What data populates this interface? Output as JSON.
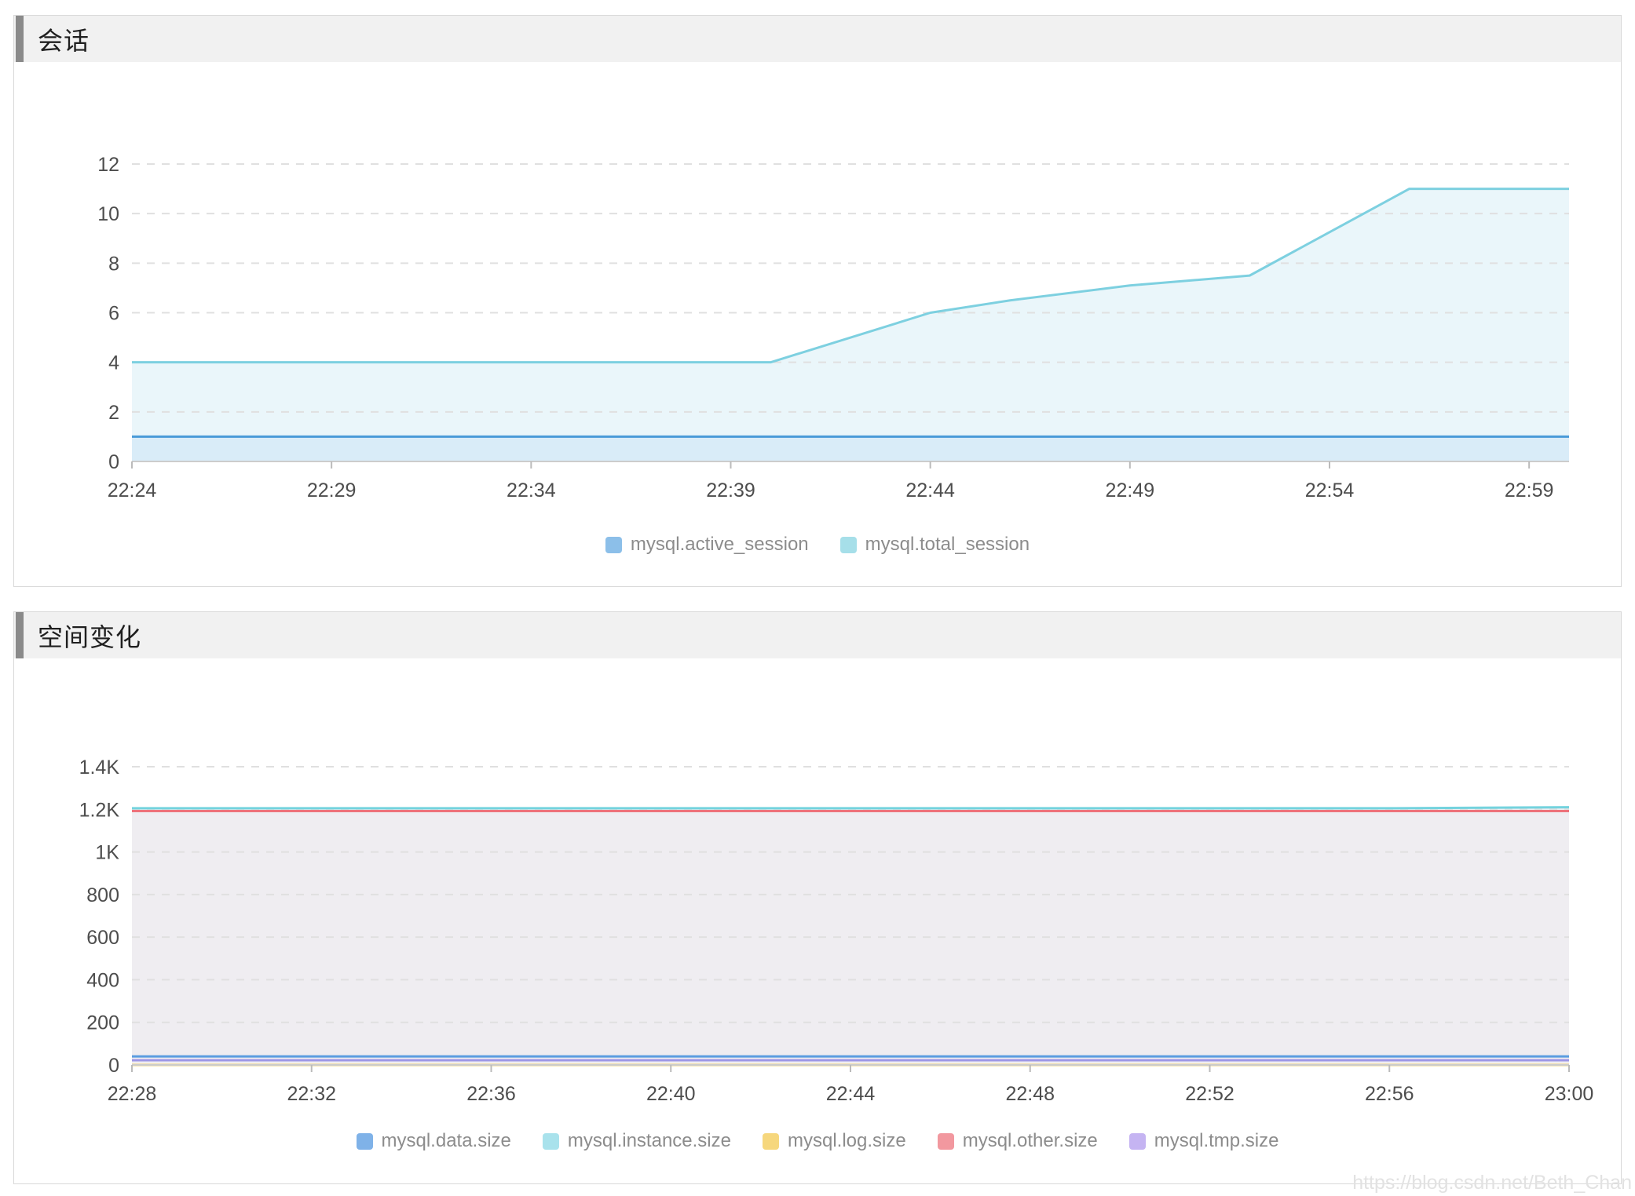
{
  "panels": [
    {
      "title": "会话"
    },
    {
      "title": "空间变化"
    }
  ],
  "watermark": "https://blog.csdn.net/Beth_Chan",
  "chart_data": [
    {
      "type": "area",
      "title": "会话",
      "x_domain": [
        "22:24",
        "23:00"
      ],
      "x_ticks": [
        "22:24",
        "22:29",
        "22:34",
        "22:39",
        "22:44",
        "22:49",
        "22:54",
        "22:59"
      ],
      "y_ticks": [
        {
          "v": 0,
          "label": "0"
        },
        {
          "v": 2,
          "label": "2"
        },
        {
          "v": 4,
          "label": "4"
        },
        {
          "v": 6,
          "label": "6"
        },
        {
          "v": 8,
          "label": "8"
        },
        {
          "v": 10,
          "label": "10"
        },
        {
          "v": 12,
          "label": "12"
        }
      ],
      "y_max": 12,
      "grid": "dashed",
      "legend_position": "bottom",
      "series": [
        {
          "name": "mysql.active_session",
          "line_color": "#4a9bd8",
          "fill_color": "#d9ecf8",
          "legend_color": "#8cbfe9",
          "values": [
            [
              "22:24",
              1
            ],
            [
              "23:00",
              1
            ]
          ]
        },
        {
          "name": "mysql.total_session",
          "line_color": "#7dd0e0",
          "fill_color": "#eaf6fa",
          "legend_color": "#a6dfe9",
          "values": [
            [
              "22:24",
              4
            ],
            [
              "22:40",
              4
            ],
            [
              "22:44",
              6
            ],
            [
              "22:46",
              6.5
            ],
            [
              "22:49",
              7.1
            ],
            [
              "22:52",
              7.5
            ],
            [
              "22:56",
              11
            ],
            [
              "23:00",
              11
            ]
          ]
        }
      ]
    },
    {
      "type": "area",
      "title": "空间变化",
      "x_domain": [
        "22:28",
        "23:00"
      ],
      "x_ticks": [
        "22:28",
        "22:32",
        "22:36",
        "22:40",
        "22:44",
        "22:48",
        "22:52",
        "22:56",
        "23:00"
      ],
      "y_ticks": [
        {
          "v": 0,
          "label": "0"
        },
        {
          "v": 200,
          "label": "200"
        },
        {
          "v": 400,
          "label": "400"
        },
        {
          "v": 600,
          "label": "600"
        },
        {
          "v": 800,
          "label": "800"
        },
        {
          "v": 1000,
          "label": "1K"
        },
        {
          "v": 1200,
          "label": "1.2K"
        },
        {
          "v": 1400,
          "label": "1.4K"
        }
      ],
      "y_max": 1400,
      "grid": "dashed",
      "legend_position": "bottom",
      "series": [
        {
          "name": "mysql.data.size",
          "line_color": "#5b9de0",
          "legend_color": "#7fb2e8",
          "values": [
            [
              "22:28",
              40
            ],
            [
              "23:00",
              40
            ]
          ]
        },
        {
          "name": "mysql.instance.size",
          "line_color": "#74d3de",
          "fill_color": "#efedf1",
          "legend_color": "#a9e2ec",
          "values": [
            [
              "22:28",
              1205
            ],
            [
              "22:56",
              1205
            ],
            [
              "23:00",
              1210
            ]
          ]
        },
        {
          "name": "mysql.log.size",
          "line_color": "#f0cf6e",
          "legend_color": "#f6d77d",
          "values": [
            [
              "22:28",
              0
            ],
            [
              "23:00",
              0
            ]
          ]
        },
        {
          "name": "mysql.other.size",
          "line_color": "#ed727b",
          "legend_color": "#f2989f",
          "values": [
            [
              "22:28",
              1192
            ],
            [
              "23:00",
              1192
            ]
          ]
        },
        {
          "name": "mysql.tmp.size",
          "line_color": "#9e97e6",
          "legend_color": "#c5b4f2",
          "values": [
            [
              "22:28",
              22
            ],
            [
              "23:00",
              22
            ]
          ]
        }
      ]
    }
  ]
}
